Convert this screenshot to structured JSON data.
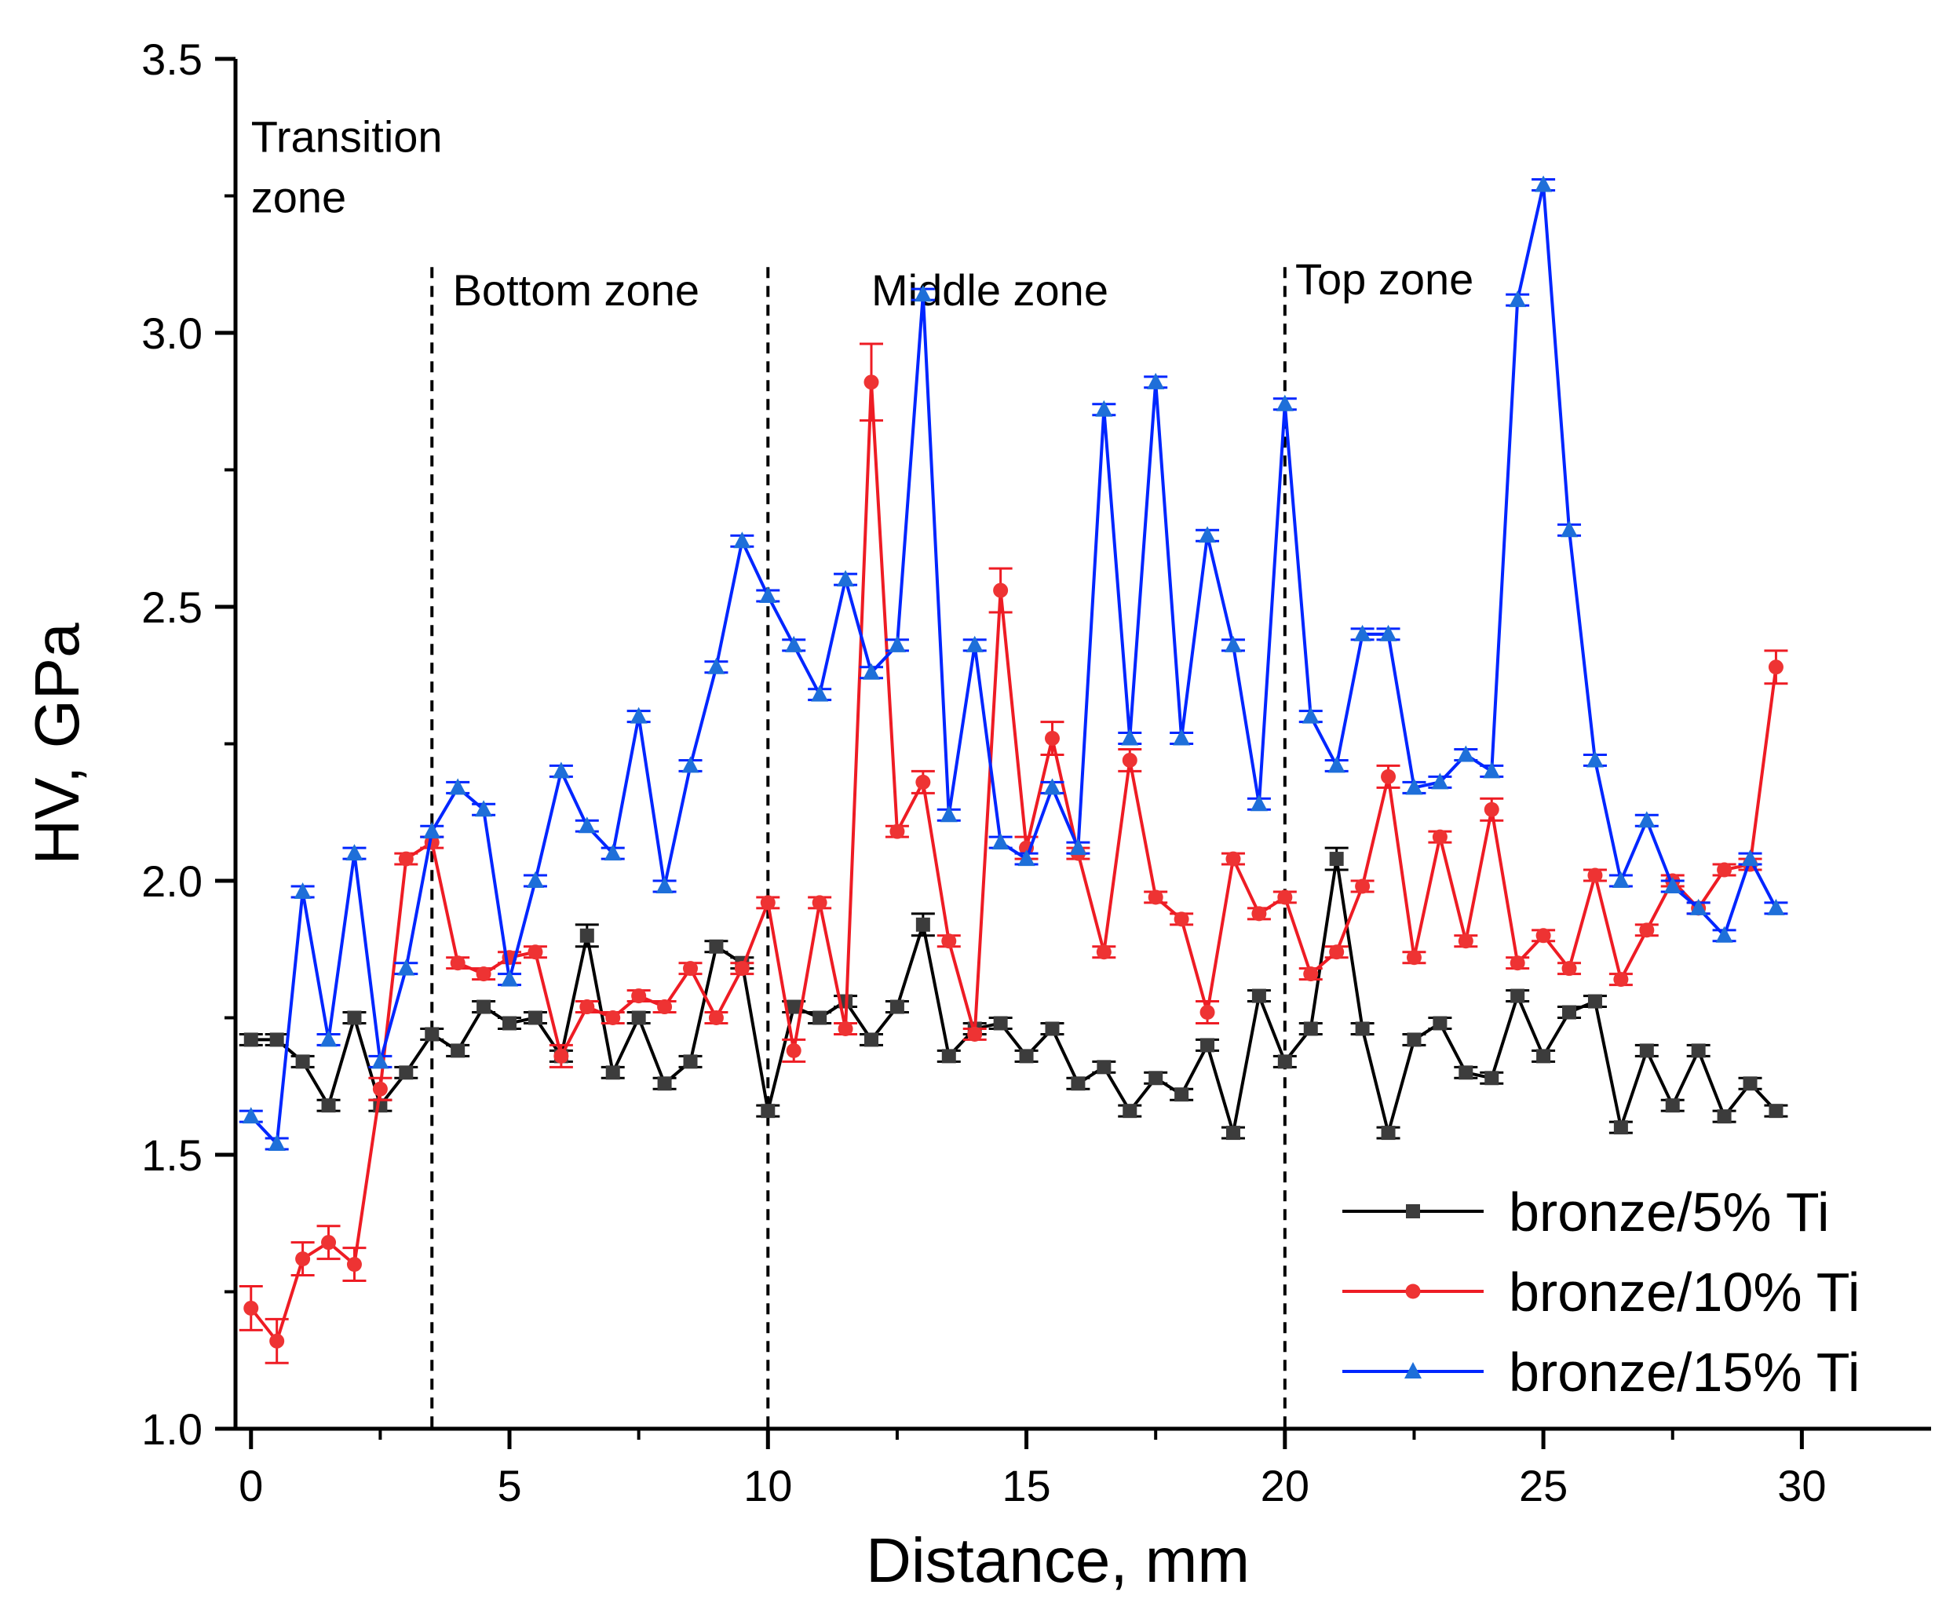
{
  "chart_data": {
    "type": "line",
    "title": "",
    "xlabel": "Distance, mm",
    "ylabel": "HV, GPa",
    "xlim": [
      -0.3,
      32.5
    ],
    "ylim": [
      1.0,
      3.5
    ],
    "xticks": [
      0,
      5,
      10,
      15,
      20,
      25,
      30
    ],
    "yticks": [
      1.0,
      1.5,
      2.0,
      2.5,
      3.0,
      3.5
    ],
    "ytick_labels": [
      "1.0",
      "1.5",
      "2.0",
      "2.5",
      "3.0",
      "3.5"
    ],
    "grid": false,
    "legend_position": "bottom-right",
    "zone_dividers": [
      3.5,
      10,
      20
    ],
    "zone_labels": [
      {
        "text": "Transition",
        "x": 0,
        "y": 3.33
      },
      {
        "text": "zone",
        "x": 0,
        "y": 3.22
      },
      {
        "text": "Bottom zone",
        "x": 3.9,
        "y": 3.05
      },
      {
        "text": "Middle zone",
        "x": 12,
        "y": 3.05
      },
      {
        "text": "Top zone",
        "x": 20.2,
        "y": 3.07
      }
    ],
    "x": [
      0,
      0.5,
      1,
      1.5,
      2,
      2.5,
      3,
      3.5,
      4,
      4.5,
      5,
      5.5,
      6,
      6.5,
      7,
      7.5,
      8,
      8.5,
      9,
      9.5,
      10,
      10.5,
      11,
      11.5,
      12,
      12.5,
      13,
      13.5,
      14,
      14.5,
      15,
      15.5,
      16,
      16.5,
      17,
      17.5,
      18,
      18.5,
      19,
      19.5,
      20,
      20.5,
      21,
      21.5,
      22,
      22.5,
      23,
      23.5,
      24,
      24.5,
      25,
      25.5,
      26,
      26.5,
      27,
      27.5,
      28,
      28.5,
      29,
      29.5
    ],
    "series": [
      {
        "name": "bronze/5% Ti",
        "color": "#000000",
        "marker_color": "#3c3c3c",
        "marker": "square",
        "values": [
          1.71,
          1.71,
          1.67,
          1.59,
          1.75,
          1.59,
          1.65,
          1.72,
          1.69,
          1.77,
          1.74,
          1.75,
          1.68,
          1.9,
          1.65,
          1.75,
          1.63,
          1.67,
          1.88,
          1.85,
          1.58,
          1.77,
          1.75,
          1.78,
          1.71,
          1.77,
          1.92,
          1.68,
          1.73,
          1.74,
          1.68,
          1.73,
          1.63,
          1.66,
          1.58,
          1.64,
          1.61,
          1.7,
          1.54,
          1.79,
          1.67,
          1.73,
          2.04,
          1.73,
          1.54,
          1.71,
          1.74,
          1.65,
          1.64,
          1.79,
          1.68,
          1.76,
          1.78,
          1.55,
          1.69,
          1.59,
          1.69,
          1.57,
          1.63,
          1.58
        ],
        "errors": [
          0.01,
          0.01,
          0.01,
          0.01,
          0.01,
          0.01,
          0.01,
          0.01,
          0.01,
          0.01,
          0.01,
          0.01,
          0.01,
          0.02,
          0.01,
          0.01,
          0.01,
          0.01,
          0.01,
          0.01,
          0.01,
          0.01,
          0.01,
          0.01,
          0.01,
          0.01,
          0.02,
          0.01,
          0.01,
          0.01,
          0.01,
          0.01,
          0.01,
          0.01,
          0.01,
          0.01,
          0.01,
          0.01,
          0.01,
          0.01,
          0.01,
          0.01,
          0.02,
          0.01,
          0.01,
          0.01,
          0.01,
          0.01,
          0.01,
          0.01,
          0.01,
          0.01,
          0.01,
          0.01,
          0.01,
          0.01,
          0.01,
          0.01,
          0.01,
          0.01
        ]
      },
      {
        "name": "bronze/10% Ti",
        "color": "#ee1c24",
        "marker_color": "#ee3333",
        "marker": "circle",
        "values": [
          1.22,
          1.16,
          1.31,
          1.34,
          1.3,
          1.62,
          2.04,
          2.07,
          1.85,
          1.83,
          1.86,
          1.87,
          1.68,
          1.77,
          1.75,
          1.79,
          1.77,
          1.84,
          1.75,
          1.84,
          1.96,
          1.69,
          1.96,
          1.73,
          2.91,
          2.09,
          2.18,
          1.89,
          1.72,
          2.53,
          2.06,
          2.26,
          2.05,
          1.87,
          2.22,
          1.97,
          1.93,
          1.76,
          2.04,
          1.94,
          1.97,
          1.83,
          1.87,
          1.99,
          2.19,
          1.86,
          2.08,
          1.89,
          2.13,
          1.85,
          1.9,
          1.84,
          2.01,
          1.82,
          1.91,
          2.0,
          1.95,
          2.02,
          2.03,
          2.39
        ],
        "errors": [
          0.04,
          0.04,
          0.03,
          0.03,
          0.03,
          0.02,
          0.01,
          0.01,
          0.01,
          0.01,
          0.01,
          0.01,
          0.02,
          0.01,
          0.01,
          0.01,
          0.01,
          0.01,
          0.01,
          0.01,
          0.01,
          0.02,
          0.01,
          0.01,
          0.07,
          0.01,
          0.02,
          0.01,
          0.01,
          0.04,
          0.02,
          0.03,
          0.01,
          0.01,
          0.02,
          0.01,
          0.01,
          0.02,
          0.01,
          0.01,
          0.01,
          0.01,
          0.01,
          0.01,
          0.02,
          0.01,
          0.01,
          0.01,
          0.02,
          0.01,
          0.01,
          0.01,
          0.01,
          0.01,
          0.01,
          0.01,
          0.01,
          0.01,
          0.01,
          0.03
        ]
      },
      {
        "name": "bronze/15% Ti",
        "color": "#0026ff",
        "marker_color": "#1e6fd9",
        "marker": "triangle",
        "values": [
          1.57,
          1.52,
          1.98,
          1.71,
          2.05,
          1.67,
          1.84,
          2.09,
          2.17,
          2.13,
          1.82,
          2.0,
          2.2,
          2.1,
          2.05,
          2.3,
          1.99,
          2.21,
          2.39,
          2.62,
          2.52,
          2.43,
          2.34,
          2.55,
          2.38,
          2.43,
          3.07,
          2.12,
          2.43,
          2.07,
          2.04,
          2.17,
          2.06,
          2.86,
          2.26,
          2.91,
          2.26,
          2.63,
          2.43,
          2.14,
          2.87,
          2.3,
          2.21,
          2.45,
          2.45,
          2.17,
          2.18,
          2.23,
          2.2,
          3.06,
          3.27,
          2.64,
          2.22,
          2.0,
          2.11,
          1.99,
          1.95,
          1.9,
          2.04,
          1.95
        ]
      }
    ]
  }
}
